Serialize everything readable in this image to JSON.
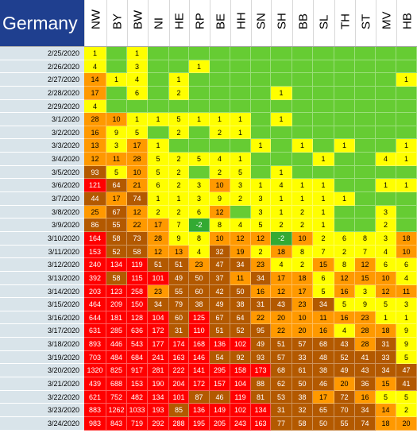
{
  "title": "Germany",
  "columns": [
    "NW",
    "BY",
    "BW",
    "NI",
    "HE",
    "RP",
    "BE",
    "HH",
    "SN",
    "SH",
    "BB",
    "SL",
    "TH",
    "ST",
    "MV",
    "HB"
  ],
  "palette": {
    "none": "#66cc33",
    "low": "#ffff00",
    "mid": "#ff9900",
    "high": "#b35900",
    "top": "#ff0000",
    "negative": "#33aa33",
    "date_bg": "#d9e4ea",
    "title_bg": "#1f3f8f"
  },
  "rows": [
    {
      "date": "2/25/2020",
      "values": [
        "1",
        "",
        "1",
        "",
        "",
        "",
        "",
        "",
        "",
        "",
        "",
        "",
        "",
        "",
        "",
        ""
      ]
    },
    {
      "date": "2/26/2020",
      "values": [
        "4",
        "",
        "3",
        "",
        "",
        "1",
        "",
        "",
        "",
        "",
        "",
        "",
        "",
        "",
        "",
        ""
      ]
    },
    {
      "date": "2/27/2020",
      "values": [
        "14",
        "1",
        "4",
        "",
        "1",
        "",
        "",
        "",
        "",
        "",
        "",
        "",
        "",
        "",
        "",
        "1"
      ]
    },
    {
      "date": "2/28/2020",
      "values": [
        "17",
        "",
        "6",
        "",
        "2",
        "",
        "",
        "",
        "",
        "1",
        "",
        "",
        "",
        "",
        "",
        ""
      ]
    },
    {
      "date": "2/29/2020",
      "values": [
        "4",
        "",
        "",
        "",
        "",
        "",
        "",
        "",
        "",
        "",
        "",
        "",
        "",
        "",
        "",
        ""
      ]
    },
    {
      "date": "3/1/2020",
      "values": [
        "28",
        "10",
        "1",
        "1",
        "5",
        "1",
        "1",
        "1",
        "",
        "1",
        "",
        "",
        "",
        "",
        "",
        ""
      ]
    },
    {
      "date": "3/2/2020",
      "values": [
        "16",
        "9",
        "5",
        "",
        "2",
        "",
        "2",
        "1",
        "",
        "",
        "",
        "",
        "",
        "",
        "",
        ""
      ]
    },
    {
      "date": "3/3/2020",
      "values": [
        "13",
        "3",
        "17",
        "1",
        "",
        "",
        "",
        "",
        "1",
        "",
        "1",
        "",
        "1",
        "",
        "",
        "1"
      ]
    },
    {
      "date": "3/4/2020",
      "values": [
        "12",
        "11",
        "28",
        "5",
        "2",
        "5",
        "4",
        "1",
        "",
        "",
        "",
        "1",
        "",
        "",
        "4",
        "1"
      ]
    },
    {
      "date": "3/5/2020",
      "values": [
        "93",
        "5",
        "10",
        "5",
        "2",
        "",
        "2",
        "5",
        "",
        "1",
        "",
        "",
        "",
        "",
        "",
        ""
      ]
    },
    {
      "date": "3/6/2020",
      "values": [
        "121",
        "64",
        "21",
        "6",
        "2",
        "3",
        "10",
        "3",
        "1",
        "4",
        "1",
        "1",
        "",
        "",
        "1",
        "1"
      ]
    },
    {
      "date": "3/7/2020",
      "values": [
        "44",
        "17",
        "74",
        "1",
        "1",
        "3",
        "9",
        "2",
        "3",
        "1",
        "1",
        "1",
        "1",
        "",
        "",
        ""
      ]
    },
    {
      "date": "3/8/2020",
      "values": [
        "25",
        "67",
        "12",
        "2",
        "2",
        "6",
        "12",
        "",
        "3",
        "1",
        "2",
        "1",
        "",
        "",
        "3",
        ""
      ]
    },
    {
      "date": "3/9/2020",
      "values": [
        "86",
        "55",
        "22",
        "17",
        "7",
        "-2",
        "8",
        "4",
        "5",
        "2",
        "2",
        "1",
        "",
        "",
        "2",
        ""
      ]
    },
    {
      "date": "3/10/2020",
      "values": [
        "164",
        "58",
        "73",
        "28",
        "9",
        "8",
        "10",
        "12",
        "12",
        "-2",
        "10",
        "2",
        "6",
        "8",
        "3",
        "18"
      ]
    },
    {
      "date": "3/11/2020",
      "values": [
        "153",
        "52",
        "58",
        "12",
        "13",
        "4",
        "32",
        "19",
        "2",
        "18",
        "8",
        "7",
        "2",
        "7",
        "4",
        "10"
      ]
    },
    {
      "date": "3/12/2020",
      "values": [
        "240",
        "134",
        "119",
        "51",
        "51",
        "23",
        "47",
        "34",
        "23",
        "4",
        "2",
        "15",
        "8",
        "12",
        "6",
        "6"
      ]
    },
    {
      "date": "3/13/2020",
      "values": [
        "392",
        "58",
        "115",
        "101",
        "49",
        "50",
        "37",
        "11",
        "34",
        "17",
        "18",
        "6",
        "12",
        "15",
        "10",
        "4"
      ]
    },
    {
      "date": "3/14/2020",
      "values": [
        "203",
        "123",
        "258",
        "23",
        "55",
        "60",
        "42",
        "50",
        "16",
        "12",
        "17",
        "5",
        "16",
        "3",
        "12",
        "11"
      ]
    },
    {
      "date": "3/15/2020",
      "values": [
        "464",
        "209",
        "150",
        "34",
        "79",
        "38",
        "49",
        "38",
        "31",
        "43",
        "23",
        "34",
        "5",
        "9",
        "5",
        "3"
      ]
    },
    {
      "date": "3/16/2020",
      "values": [
        "644",
        "181",
        "128",
        "104",
        "60",
        "125",
        "67",
        "64",
        "22",
        "20",
        "10",
        "11",
        "16",
        "23",
        "1",
        "1"
      ]
    },
    {
      "date": "3/17/2020",
      "values": [
        "631",
        "285",
        "636",
        "172",
        "31",
        "110",
        "51",
        "52",
        "95",
        "22",
        "20",
        "16",
        "4",
        "28",
        "18",
        "9"
      ]
    },
    {
      "date": "3/18/2020",
      "values": [
        "893",
        "446",
        "543",
        "177",
        "174",
        "168",
        "136",
        "102",
        "49",
        "51",
        "57",
        "68",
        "43",
        "28",
        "31",
        "9"
      ]
    },
    {
      "date": "3/19/2020",
      "values": [
        "703",
        "484",
        "684",
        "241",
        "163",
        "146",
        "54",
        "92",
        "93",
        "57",
        "33",
        "48",
        "52",
        "41",
        "33",
        "5"
      ]
    },
    {
      "date": "3/20/2020",
      "values": [
        "1320",
        "825",
        "917",
        "281",
        "222",
        "141",
        "295",
        "158",
        "173",
        "68",
        "61",
        "38",
        "49",
        "43",
        "34",
        "47"
      ]
    },
    {
      "date": "3/21/2020",
      "values": [
        "439",
        "688",
        "153",
        "190",
        "204",
        "172",
        "157",
        "104",
        "88",
        "62",
        "50",
        "46",
        "20",
        "36",
        "15",
        "41"
      ]
    },
    {
      "date": "3/22/2020",
      "values": [
        "621",
        "752",
        "482",
        "134",
        "101",
        "87",
        "46",
        "119",
        "81",
        "53",
        "38",
        "17",
        "72",
        "16",
        "5",
        "5"
      ]
    },
    {
      "date": "3/23/2020",
      "values": [
        "883",
        "1262",
        "1033",
        "193",
        "85",
        "136",
        "149",
        "102",
        "134",
        "31",
        "32",
        "65",
        "70",
        "34",
        "14",
        "2"
      ]
    },
    {
      "date": "3/24/2020",
      "values": [
        "983",
        "843",
        "719",
        "292",
        "288",
        "195",
        "205",
        "243",
        "163",
        "77",
        "58",
        "50",
        "55",
        "74",
        "18",
        "20"
      ]
    }
  ]
}
